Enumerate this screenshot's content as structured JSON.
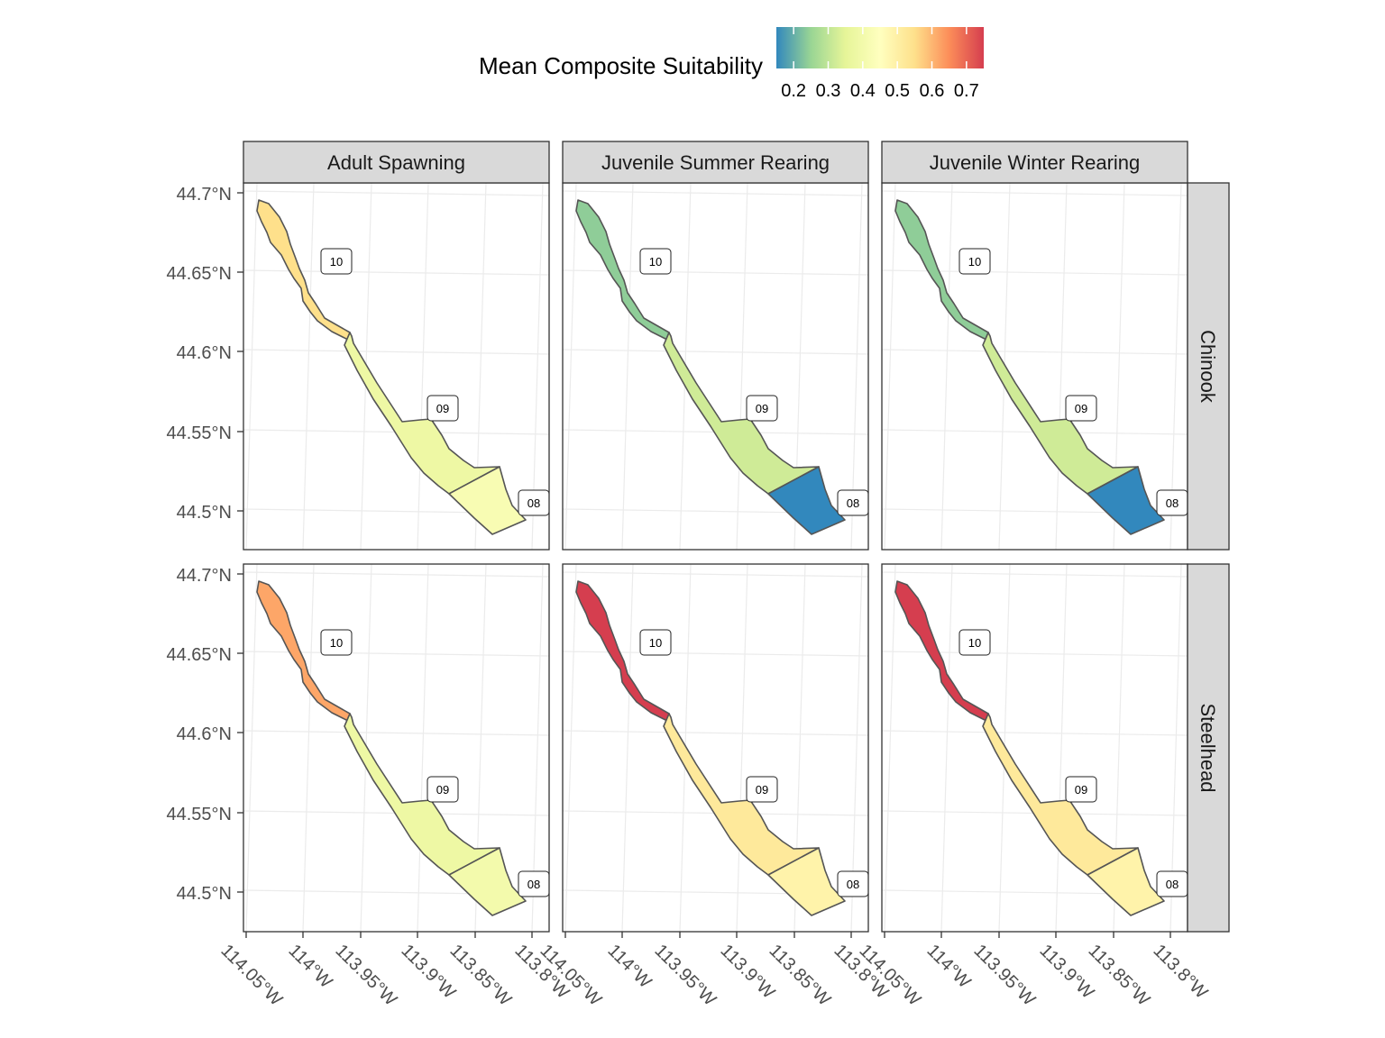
{
  "chart_data": {
    "type": "map",
    "legend": {
      "title": "Mean Composite Suitability",
      "ticks": [
        "0.2",
        "0.3",
        "0.4",
        "0.5",
        "0.6",
        "0.7"
      ],
      "tick_values": [
        0.2,
        0.3,
        0.4,
        0.5,
        0.6,
        0.7
      ],
      "range": [
        0.15,
        0.75
      ],
      "palette": [
        "#3288BD",
        "#99D594",
        "#E6F598",
        "#FFFFBF",
        "#FEE08B",
        "#FC8D59",
        "#D53E4F"
      ]
    },
    "columns": [
      "Adult Spawning",
      "Juvenile Summer Rearing",
      "Juvenile Winter Rearing"
    ],
    "rows": [
      "Chinook",
      "Steelhead"
    ],
    "y_ticks": [
      "44.7°N",
      "44.65°N",
      "44.6°N",
      "44.55°N",
      "44.5°N"
    ],
    "x_ticks": [
      "114.05°W",
      "114°W",
      "113.95°W",
      "113.9°W",
      "113.85°W",
      "113.8°W"
    ],
    "segment_labels": [
      "10",
      "09",
      "08"
    ],
    "panels": [
      {
        "row": "Chinook",
        "column": "Adult Spawning",
        "values": {
          "10": 0.55,
          "09": 0.38,
          "08": 0.42
        }
      },
      {
        "row": "Chinook",
        "column": "Juvenile Summer Rearing",
        "values": {
          "10": 0.24,
          "09": 0.32,
          "08": 0.15
        }
      },
      {
        "row": "Chinook",
        "column": "Juvenile Winter Rearing",
        "values": {
          "10": 0.24,
          "09": 0.32,
          "08": 0.15
        }
      },
      {
        "row": "Steelhead",
        "column": "Adult Spawning",
        "values": {
          "10": 0.62,
          "09": 0.38,
          "08": 0.4
        }
      },
      {
        "row": "Steelhead",
        "column": "Juvenile Summer Rearing",
        "values": {
          "10": 0.75,
          "09": 0.52,
          "08": 0.49
        }
      },
      {
        "row": "Steelhead",
        "column": "Juvenile Winter Rearing",
        "values": {
          "10": 0.75,
          "09": 0.52,
          "08": 0.49
        }
      }
    ]
  }
}
